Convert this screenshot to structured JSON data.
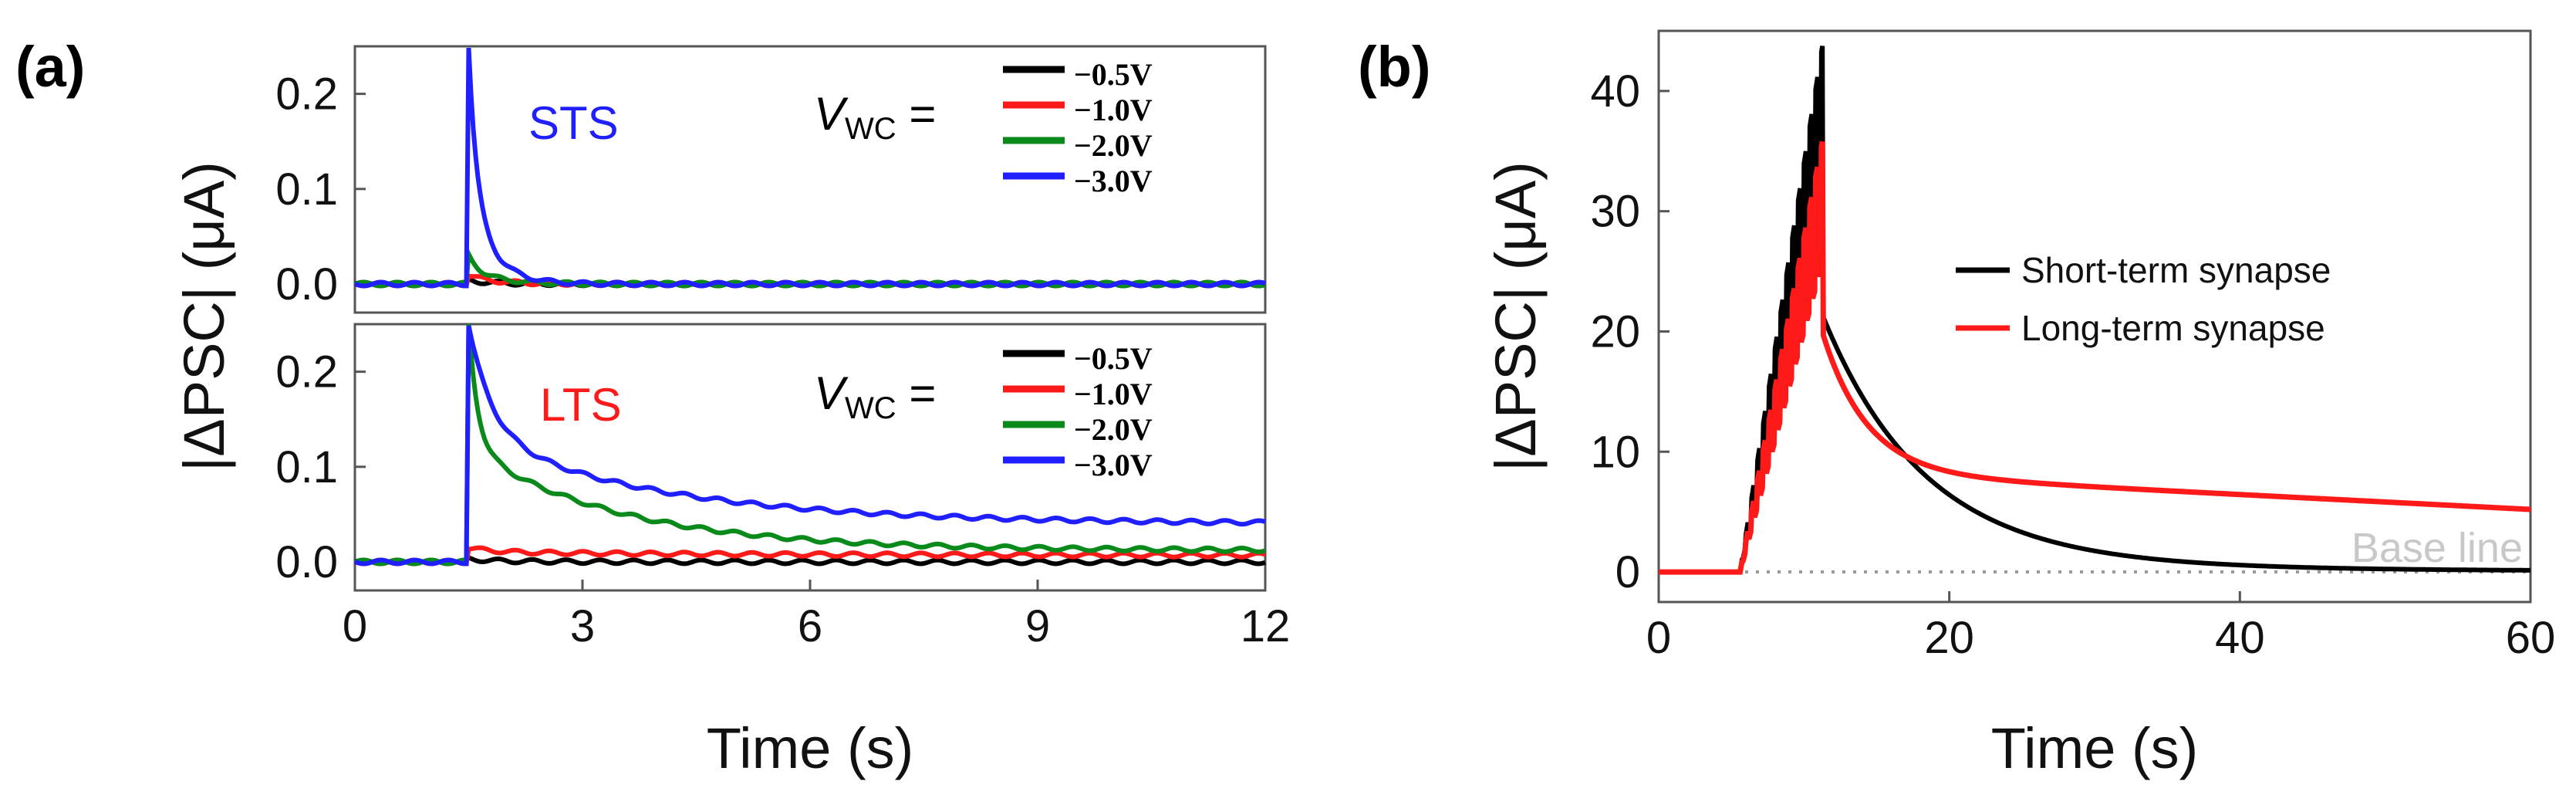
{
  "chart_data": [
    {
      "panel": "(a)",
      "type": "line",
      "xlabel": "Time (s)",
      "ylabel": "|ΔPSC| (μA)",
      "xlim": [
        0,
        12
      ],
      "x_ticks": [
        "0",
        "3",
        "6",
        "9",
        "12"
      ],
      "y_ticks": [
        "0.0",
        "0.1",
        "0.2"
      ],
      "vwc_label_main": "V",
      "vwc_label_sub": "WC",
      "vwc_label_eq": " =",
      "subplots": [
        {
          "tag": "STS",
          "tag_color": "#1f1fff",
          "ylim": [
            -0.03,
            0.25
          ],
          "series": [
            {
              "name": "−0.5V",
              "color": "#000000",
              "peak": 0.004,
              "tail": 0.0,
              "tau_fast": 0.2,
              "tau_slow": 1.0
            },
            {
              "name": "−1.0V",
              "color": "#ff1a1a",
              "peak": 0.01,
              "tail": 0.0,
              "tau_fast": 0.2,
              "tau_slow": 1.0
            },
            {
              "name": "−2.0V",
              "color": "#0a8a1a",
              "peak": 0.03,
              "tail": 0.0,
              "tau_fast": 0.15,
              "tau_slow": 1.0
            },
            {
              "name": "−3.0V",
              "color": "#1f1fff",
              "peak": 0.25,
              "tail": 0.0,
              "tau_fast": 0.1,
              "tau_slow": 1.0
            }
          ]
        },
        {
          "tag": "LTS",
          "tag_color": "#ff1a1a",
          "ylim": [
            -0.03,
            0.25
          ],
          "series": [
            {
              "name": "−0.5V",
              "color": "#000000",
              "peak": 0.003,
              "tail": 0.0,
              "tau_fast": 0.3,
              "tau_slow": 2.0
            },
            {
              "name": "−1.0V",
              "color": "#ff1a1a",
              "peak": 0.015,
              "tail": 0.007,
              "tau_fast": 0.3,
              "tau_slow": 3.0
            },
            {
              "name": "−2.0V",
              "color": "#0a8a1a",
              "peak": 0.25,
              "tail": 0.012,
              "tau_fast": 0.12,
              "tau_slow": 2.0
            },
            {
              "name": "−3.0V",
              "color": "#1f1fff",
              "peak": 0.25,
              "tail": 0.04,
              "tau_fast": 0.3,
              "tau_slow": 2.5
            }
          ]
        }
      ],
      "pulse_time": 1.5
    },
    {
      "panel": "(b)",
      "type": "line",
      "xlabel": "Time (s)",
      "ylabel": "|ΔPSC| (μA)",
      "xlim": [
        0,
        60
      ],
      "ylim": [
        -2.5,
        45
      ],
      "x_ticks": [
        "0",
        "20",
        "40",
        "60"
      ],
      "y_ticks": [
        "0",
        "10",
        "20",
        "30",
        "40"
      ],
      "baseline_label": "Base line",
      "series": [
        {
          "name": "Short-term synapse",
          "color": "#000000",
          "peak": 44,
          "train_start": 5.6,
          "train_end": 11.3,
          "tail": 0,
          "decay_tau": 7
        },
        {
          "name": "Long-term synapse",
          "color": "#ff1a1a",
          "peak": 36,
          "train_start": 5.6,
          "train_end": 11.3,
          "tail_end_value": 5.2,
          "decay_tau": 3
        }
      ]
    }
  ]
}
